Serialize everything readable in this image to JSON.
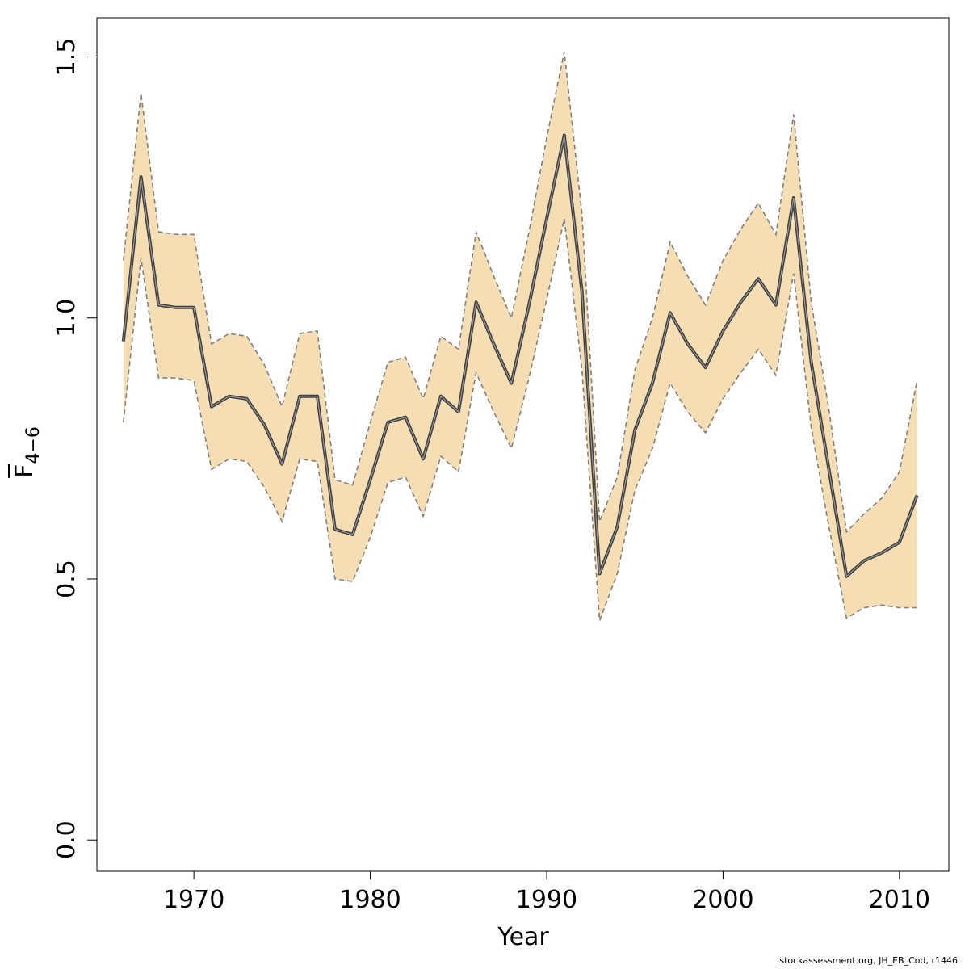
{
  "chart_data": {
    "type": "line",
    "xlabel": "Year",
    "ylabel": "F",
    "ylabel_sub": "4−6",
    "xlim": [
      1964.5,
      2012.8
    ],
    "ylim": [
      -0.06,
      1.575
    ],
    "x_ticks": [
      1970,
      1980,
      1990,
      2000,
      2010
    ],
    "y_ticks": [
      0.0,
      0.5,
      1.0,
      1.5
    ],
    "y_tick_labels": [
      "0.0",
      "0.5",
      "1.0",
      "1.5"
    ],
    "band_color": "#f5deb3",
    "band_border_color": "#808080",
    "line_color": "#404040",
    "x": [
      1966,
      1967,
      1968,
      1969,
      1970,
      1971,
      1972,
      1973,
      1974,
      1975,
      1976,
      1977,
      1978,
      1979,
      1980,
      1981,
      1982,
      1983,
      1984,
      1985,
      1986,
      1987,
      1988,
      1989,
      1990,
      1991,
      1992,
      1993,
      1994,
      1995,
      1996,
      1997,
      1998,
      1999,
      2000,
      2001,
      2002,
      2003,
      2004,
      2005,
      2006,
      2007,
      2008,
      2009,
      2010,
      2011
    ],
    "series": [
      {
        "values": [
          0.955,
          1.27,
          1.025,
          1.02,
          1.02,
          0.83,
          0.85,
          0.845,
          0.795,
          0.72,
          0.85,
          0.85,
          0.595,
          0.585,
          0.69,
          0.8,
          0.81,
          0.73,
          0.85,
          0.82,
          1.03,
          0.95,
          0.875,
          1.025,
          1.19,
          1.35,
          1.05,
          0.51,
          0.6,
          0.785,
          0.875,
          1.01,
          0.95,
          0.905,
          0.975,
          1.03,
          1.075,
          1.025,
          1.23,
          0.915,
          0.71,
          0.505,
          0.535,
          0.55,
          0.57,
          0.66
        ]
      },
      {
        "values": [
          1.11,
          1.43,
          1.165,
          1.16,
          1.16,
          0.95,
          0.97,
          0.965,
          0.91,
          0.83,
          0.97,
          0.975,
          0.69,
          0.68,
          0.8,
          0.915,
          0.925,
          0.845,
          0.965,
          0.94,
          1.165,
          1.08,
          1.0,
          1.165,
          1.345,
          1.51,
          1.2,
          0.61,
          0.695,
          0.9,
          1.0,
          1.145,
          1.08,
          1.025,
          1.11,
          1.17,
          1.22,
          1.16,
          1.39,
          1.03,
          0.825,
          0.59,
          0.625,
          0.655,
          0.705,
          0.88
        ]
      },
      {
        "values": [
          0.8,
          1.115,
          0.885,
          0.885,
          0.88,
          0.71,
          0.73,
          0.725,
          0.675,
          0.61,
          0.73,
          0.725,
          0.5,
          0.495,
          0.58,
          0.685,
          0.695,
          0.62,
          0.735,
          0.705,
          0.895,
          0.82,
          0.75,
          0.885,
          1.035,
          1.19,
          0.9,
          0.42,
          0.51,
          0.67,
          0.75,
          0.875,
          0.82,
          0.78,
          0.845,
          0.895,
          0.94,
          0.89,
          1.085,
          0.79,
          0.6,
          0.425,
          0.445,
          0.45,
          0.445,
          0.445
        ]
      }
    ]
  },
  "footer": "stockassessment.org, JH_EB_Cod, r1446"
}
